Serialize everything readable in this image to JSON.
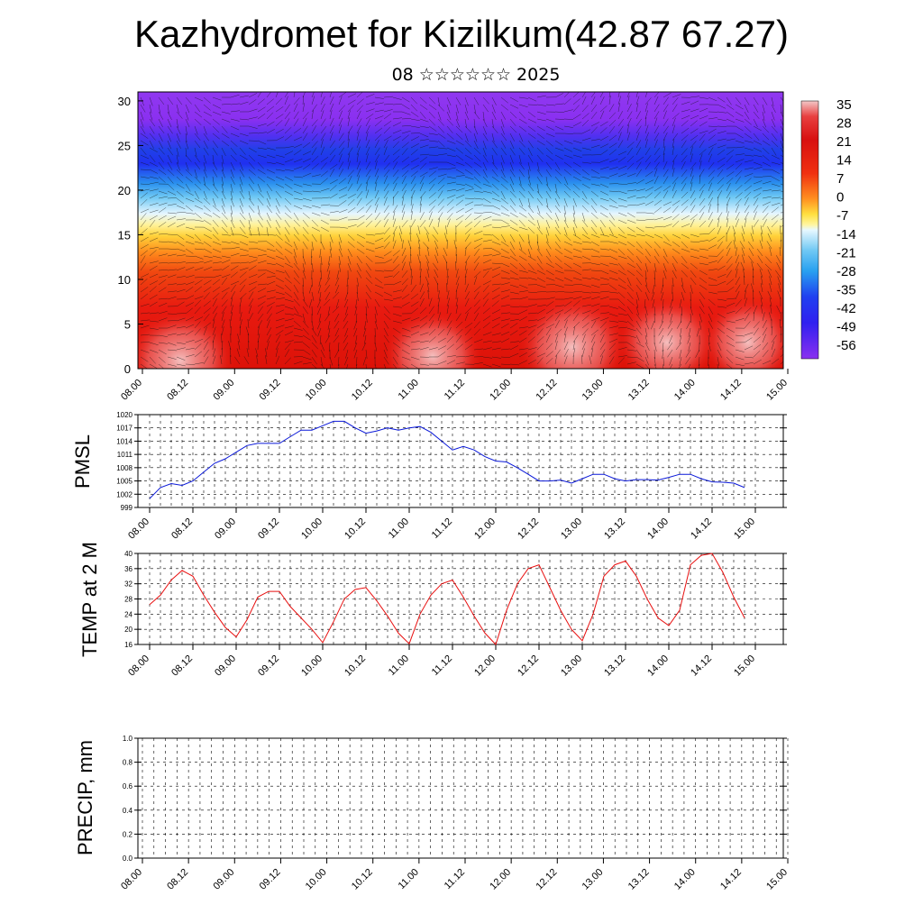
{
  "title": "Kazhydromet for Kizilkum(42.87 67.27)",
  "subtitle": "08 ☆☆☆☆☆☆ 2025",
  "time_ticks": [
    "08.00",
    "08.12",
    "09.00",
    "09.12",
    "10.00",
    "10.12",
    "11.00",
    "11.12",
    "12.00",
    "12.12",
    "13.00",
    "13.12",
    "14.00",
    "14.12",
    "15.00"
  ],
  "chart_data": [
    {
      "type": "heatmap",
      "name_note": "vertical cross-section of temperature with wind barbs",
      "y_ticks": [
        "0",
        "5",
        "10",
        "15",
        "20",
        "25",
        "30"
      ],
      "ylim": [
        0,
        31
      ],
      "colorbar_labels": [
        "35",
        "28",
        "21",
        "14",
        "7",
        "0",
        "-7",
        "-14",
        "-21",
        "-28",
        "-35",
        "-42",
        "-49",
        "-56"
      ],
      "colorbar_range": [
        -63,
        42
      ],
      "colors": {
        "hot": "#f2c0c0",
        "red": "#e11a10",
        "orange": "#ff8a1c",
        "yellow": "#ffe94a",
        "light": "#e6f6ff",
        "cyan": "#2ab0ee",
        "blue": "#2030f0",
        "purple": "#8a30f0"
      }
    },
    {
      "type": "line",
      "ylabel": "PMSL",
      "y_ticks": [
        "1020",
        "1017",
        "1014",
        "1011",
        "1008",
        "1005",
        "1002",
        "999"
      ],
      "ylim": [
        999,
        1020
      ],
      "x": [
        0,
        3,
        6,
        9,
        12,
        15,
        18,
        21,
        24,
        27,
        30,
        33,
        36,
        39,
        42,
        45,
        48,
        51,
        54,
        57,
        60,
        63,
        66,
        69,
        72,
        75,
        78,
        81,
        84,
        87,
        90,
        93,
        96,
        99,
        102,
        105,
        108,
        111,
        114,
        117,
        120,
        123,
        126,
        129,
        132,
        135,
        138,
        141,
        144,
        147,
        150,
        153,
        156,
        159,
        162,
        165
      ],
      "values": [
        1001,
        1003.5,
        1004.4,
        1004,
        1005,
        1007,
        1009,
        1010,
        1011.5,
        1013,
        1013.5,
        1013.5,
        1013.5,
        1015,
        1016.5,
        1016.5,
        1017.5,
        1018.5,
        1018.5,
        1017,
        1015.8,
        1016.3,
        1017,
        1016.5,
        1017,
        1017.3,
        1016,
        1014,
        1012,
        1012.8,
        1012,
        1010.5,
        1009.5,
        1009.3,
        1008,
        1006.5,
        1005,
        1005,
        1005.2,
        1004.5,
        1005.5,
        1006.5,
        1006.5,
        1005.5,
        1005,
        1005.3,
        1005.3,
        1005.2,
        1005.8,
        1006.5,
        1006.5,
        1005.5,
        1004.8,
        1004.7,
        1004.5,
        1003.5
      ],
      "color": "#0a18d8"
    },
    {
      "type": "line",
      "ylabel": "TEMP at 2 M",
      "y_ticks": [
        "40",
        "36",
        "32",
        "28",
        "24",
        "20",
        "16"
      ],
      "ylim": [
        16,
        40
      ],
      "x": [
        0,
        3,
        6,
        9,
        12,
        15,
        18,
        21,
        24,
        27,
        30,
        33,
        36,
        39,
        42,
        45,
        48,
        51,
        54,
        57,
        60,
        63,
        66,
        69,
        72,
        75,
        78,
        81,
        84,
        87,
        90,
        93,
        96,
        99,
        102,
        105,
        108,
        111,
        114,
        117,
        120,
        123,
        126,
        129,
        132,
        135,
        138,
        141,
        144,
        147,
        150,
        153,
        156,
        159,
        162,
        165
      ],
      "values": [
        26.5,
        29,
        33,
        35.5,
        34,
        29,
        24.5,
        20.5,
        18,
        22.5,
        28.5,
        30,
        30,
        26,
        23,
        20,
        16.5,
        22,
        28,
        30.5,
        31,
        27.5,
        23.5,
        19,
        16.2,
        24,
        29,
        32,
        33,
        28.5,
        23.5,
        19,
        16,
        25,
        32,
        36,
        37,
        31,
        25,
        20,
        17,
        24,
        34,
        37,
        38,
        34,
        28,
        23,
        21,
        25,
        37,
        39.5,
        40,
        35,
        28.5,
        23
      ],
      "color": "#e81010"
    },
    {
      "type": "line",
      "ylabel": "PRECIP, mm",
      "y_ticks": [
        "1.0",
        "0.8",
        "0.6",
        "0.4",
        "0.2",
        "0.0"
      ],
      "ylim": [
        0,
        1
      ],
      "values": [
        0,
        0,
        0,
        0,
        0,
        0,
        0,
        0,
        0,
        0,
        0,
        0,
        0,
        0,
        0,
        0,
        0,
        0,
        0,
        0,
        0,
        0,
        0,
        0,
        0,
        0,
        0,
        0,
        0,
        0,
        0,
        0,
        0,
        0,
        0,
        0,
        0,
        0,
        0,
        0,
        0,
        0,
        0,
        0,
        0,
        0,
        0,
        0,
        0,
        0,
        0,
        0,
        0,
        0,
        0,
        0,
        0
      ],
      "color": "#2a6e2a"
    }
  ]
}
